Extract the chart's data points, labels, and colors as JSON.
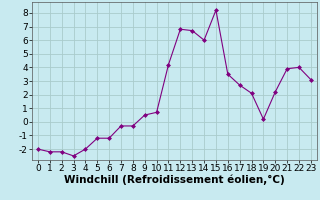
{
  "x": [
    0,
    1,
    2,
    3,
    4,
    5,
    6,
    7,
    8,
    9,
    10,
    11,
    12,
    13,
    14,
    15,
    16,
    17,
    18,
    19,
    20,
    21,
    22,
    23
  ],
  "y": [
    -2.0,
    -2.2,
    -2.2,
    -2.5,
    -2.0,
    -1.2,
    -1.2,
    -0.3,
    -0.3,
    0.5,
    0.7,
    4.2,
    6.8,
    6.7,
    6.0,
    8.2,
    3.5,
    2.7,
    2.1,
    0.2,
    2.2,
    3.9,
    4.0,
    3.1
  ],
  "xlabel": "Windchill (Refroidissement éolien,°C)",
  "line_color": "#800080",
  "marker_color": "#800080",
  "bg_color": "#c8eaf0",
  "grid_color": "#aacccc",
  "ylim": [
    -2.8,
    8.8
  ],
  "xlim": [
    -0.5,
    23.5
  ],
  "yticks": [
    -2,
    -1,
    0,
    1,
    2,
    3,
    4,
    5,
    6,
    7,
    8
  ],
  "xticks": [
    0,
    1,
    2,
    3,
    4,
    5,
    6,
    7,
    8,
    9,
    10,
    11,
    12,
    13,
    14,
    15,
    16,
    17,
    18,
    19,
    20,
    21,
    22,
    23
  ],
  "tick_fontsize": 6.5,
  "label_fontsize": 7.5
}
